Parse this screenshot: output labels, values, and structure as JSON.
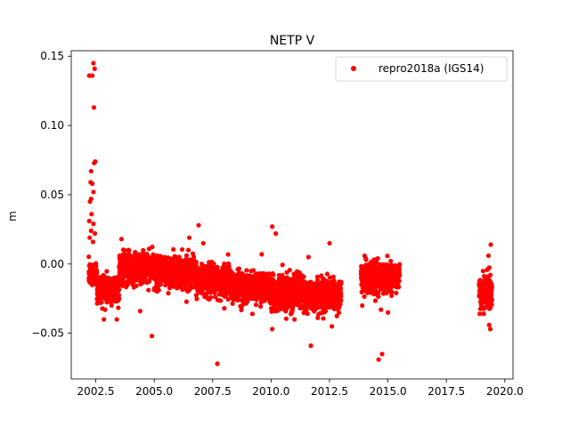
{
  "chart_data": {
    "type": "scatter",
    "title": "NETP V",
    "xlabel": "",
    "ylabel": "m",
    "xlim": [
      2001.45,
      2020.35
    ],
    "ylim": [
      -0.083,
      0.154
    ],
    "x_ticks": [
      2002.5,
      2005.0,
      2007.5,
      2010.0,
      2012.5,
      2015.0,
      2017.5,
      2020.0
    ],
    "x_tick_labels": [
      "2002.5",
      "2005.0",
      "2007.5",
      "2010.0",
      "2012.5",
      "2015.0",
      "2017.5",
      "2020.0"
    ],
    "y_ticks": [
      -0.05,
      0.0,
      0.05,
      0.1,
      0.15
    ],
    "y_tick_labels": [
      "−0.05",
      "0.00",
      "0.05",
      "0.10",
      "0.15"
    ],
    "grid": false,
    "legend": {
      "position": "top-right",
      "entries": [
        "repro2018a (IGS14)"
      ]
    },
    "colors": {
      "series": "#ff0000",
      "axes": "#000000",
      "background": "#ffffff"
    },
    "series": [
      {
        "name": "repro2018a (IGS14)",
        "color": "#ff0000",
        "marker": "circle",
        "segments": [
          {
            "x_start": 2002.2,
            "x_end": 2002.55,
            "y_center": -0.007,
            "y_spread": 0.008
          },
          {
            "x_start": 2002.55,
            "x_end": 2003.5,
            "y_center": -0.018,
            "y_spread": 0.01
          },
          {
            "x_start": 2003.5,
            "x_end": 2005.0,
            "y_center": -0.003,
            "y_spread": 0.01
          },
          {
            "x_start": 2005.0,
            "x_end": 2006.8,
            "y_center": -0.006,
            "y_spread": 0.01
          },
          {
            "x_start": 2006.8,
            "x_end": 2008.3,
            "y_center": -0.012,
            "y_spread": 0.01
          },
          {
            "x_start": 2008.3,
            "x_end": 2010.0,
            "y_center": -0.016,
            "y_spread": 0.01
          },
          {
            "x_start": 2010.0,
            "x_end": 2011.3,
            "y_center": -0.02,
            "y_spread": 0.011
          },
          {
            "x_start": 2011.3,
            "x_end": 2013.0,
            "y_center": -0.023,
            "y_spread": 0.01
          },
          {
            "x_start": 2013.85,
            "x_end": 2015.5,
            "y_center": -0.01,
            "y_spread": 0.01
          },
          {
            "x_start": 2018.9,
            "x_end": 2019.45,
            "y_center": -0.02,
            "y_spread": 0.011
          }
        ],
        "outliers": [
          {
            "x": 2002.22,
            "y": 0.136
          },
          {
            "x": 2002.35,
            "y": 0.136
          },
          {
            "x": 2002.4,
            "y": 0.145
          },
          {
            "x": 2002.45,
            "y": 0.141
          },
          {
            "x": 2002.42,
            "y": 0.113
          },
          {
            "x": 2002.48,
            "y": 0.074
          },
          {
            "x": 2002.43,
            "y": 0.073
          },
          {
            "x": 2002.3,
            "y": 0.067
          },
          {
            "x": 2002.28,
            "y": 0.059
          },
          {
            "x": 2002.35,
            "y": 0.058
          },
          {
            "x": 2002.3,
            "y": 0.047
          },
          {
            "x": 2002.25,
            "y": 0.045
          },
          {
            "x": 2002.4,
            "y": 0.052
          },
          {
            "x": 2002.32,
            "y": 0.036
          },
          {
            "x": 2002.22,
            "y": 0.031
          },
          {
            "x": 2002.4,
            "y": 0.029
          },
          {
            "x": 2002.3,
            "y": 0.024
          },
          {
            "x": 2002.24,
            "y": 0.019
          },
          {
            "x": 2002.46,
            "y": 0.022
          },
          {
            "x": 2002.38,
            "y": 0.016
          },
          {
            "x": 2004.4,
            "y": -0.034
          },
          {
            "x": 2004.9,
            "y": -0.052
          },
          {
            "x": 2006.9,
            "y": 0.028
          },
          {
            "x": 2007.7,
            "y": -0.072
          },
          {
            "x": 2010.05,
            "y": 0.027
          },
          {
            "x": 2010.2,
            "y": 0.022
          },
          {
            "x": 2010.05,
            "y": -0.047
          },
          {
            "x": 2011.7,
            "y": -0.059
          },
          {
            "x": 2012.5,
            "y": 0.015
          },
          {
            "x": 2012.6,
            "y": -0.045
          },
          {
            "x": 2014.6,
            "y": -0.069
          },
          {
            "x": 2014.75,
            "y": -0.065
          },
          {
            "x": 2014.0,
            "y": 0.006
          },
          {
            "x": 2013.9,
            "y": -0.03
          },
          {
            "x": 2014.7,
            "y": -0.033
          },
          {
            "x": 2015.0,
            "y": -0.035
          },
          {
            "x": 2019.4,
            "y": 0.014
          },
          {
            "x": 2019.38,
            "y": -0.047
          },
          {
            "x": 2019.33,
            "y": -0.044
          },
          {
            "x": 2019.1,
            "y": -0.036
          },
          {
            "x": 2019.3,
            "y": 0.006
          },
          {
            "x": 2002.9,
            "y": -0.033
          },
          {
            "x": 2003.6,
            "y": 0.018
          },
          {
            "x": 2006.5,
            "y": 0.019
          },
          {
            "x": 2007.1,
            "y": 0.015
          },
          {
            "x": 2008.0,
            "y": -0.032
          },
          {
            "x": 2009.2,
            "y": -0.036
          },
          {
            "x": 2011.0,
            "y": -0.04
          },
          {
            "x": 2009.6,
            "y": 0.007
          },
          {
            "x": 2011.6,
            "y": 0.005
          }
        ]
      }
    ]
  }
}
